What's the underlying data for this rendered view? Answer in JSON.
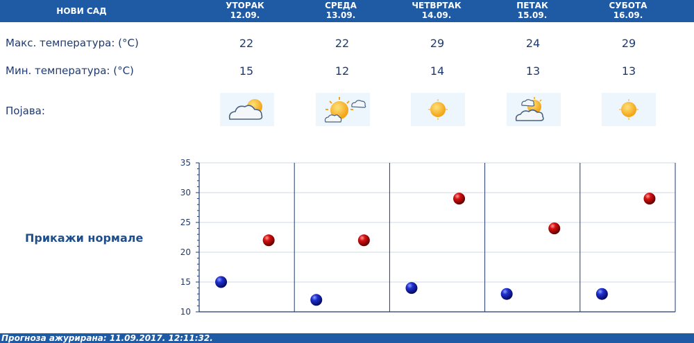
{
  "header": {
    "city": "НОВИ САД",
    "days": [
      {
        "name": "УТОРАК",
        "date": "12.09."
      },
      {
        "name": "СРЕДА",
        "date": "13.09."
      },
      {
        "name": "ЧЕТВРТАК",
        "date": "14.09."
      },
      {
        "name": "ПЕТАК",
        "date": "15.09."
      },
      {
        "name": "СУБОТА",
        "date": "16.09."
      }
    ]
  },
  "rows": {
    "max_label": "Макс. температура: (°C)",
    "min_label": "Мин. температура: (°C)",
    "phenomenon_label": "Појава:",
    "max": [
      "22",
      "22",
      "29",
      "24",
      "29"
    ],
    "min": [
      "15",
      "12",
      "14",
      "13",
      "13"
    ],
    "icons": [
      "cloud-sun-icon",
      "sun-cloud-icon",
      "sun-icon",
      "sun-cloud-icon",
      "sun-icon"
    ]
  },
  "normals_link": "Прикажи нормале",
  "footer": "Прогноза ажурирана:  11.09.2017. 12:11:32.",
  "colors": {
    "header": "#1f5aa5",
    "min_point": "#0a1a9e",
    "max_point": "#c00000"
  },
  "chart_data": {
    "type": "scatter",
    "ylim": [
      10,
      35
    ],
    "yticks": [
      "10",
      "15",
      "20",
      "25",
      "30",
      "35"
    ],
    "categories": [
      "12.09.",
      "13.09.",
      "14.09.",
      "15.09.",
      "16.09."
    ],
    "series": [
      {
        "values": [
          15,
          12,
          14,
          13,
          13
        ]
      },
      {
        "values": [
          22,
          22,
          29,
          24,
          29
        ]
      }
    ]
  }
}
